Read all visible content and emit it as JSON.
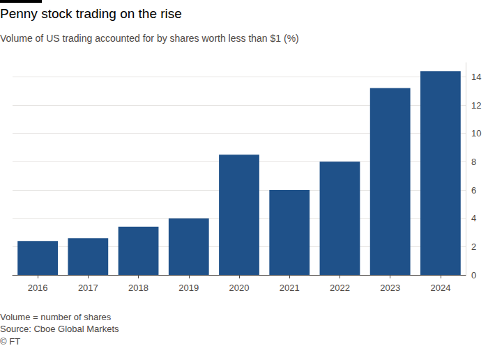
{
  "chart_data": {
    "type": "bar",
    "title": "Penny stock trading on the rise",
    "subtitle": "Volume of US trading accounted for by shares worth less than $1 (%)",
    "categories": [
      "2016",
      "2017",
      "2018",
      "2019",
      "2020",
      "2021",
      "2022",
      "2023",
      "2024"
    ],
    "values": [
      2.4,
      2.6,
      3.4,
      4.0,
      8.5,
      6.0,
      8.0,
      13.2,
      14.4
    ],
    "color": "#1f5189",
    "ylim": [
      0,
      15
    ],
    "yticks": [
      0,
      2,
      4,
      6,
      8,
      10,
      12,
      14
    ],
    "grid": true,
    "annotations": [
      "Volume = number of shares",
      "Source: Cboe Global Markets",
      "© FT"
    ]
  }
}
